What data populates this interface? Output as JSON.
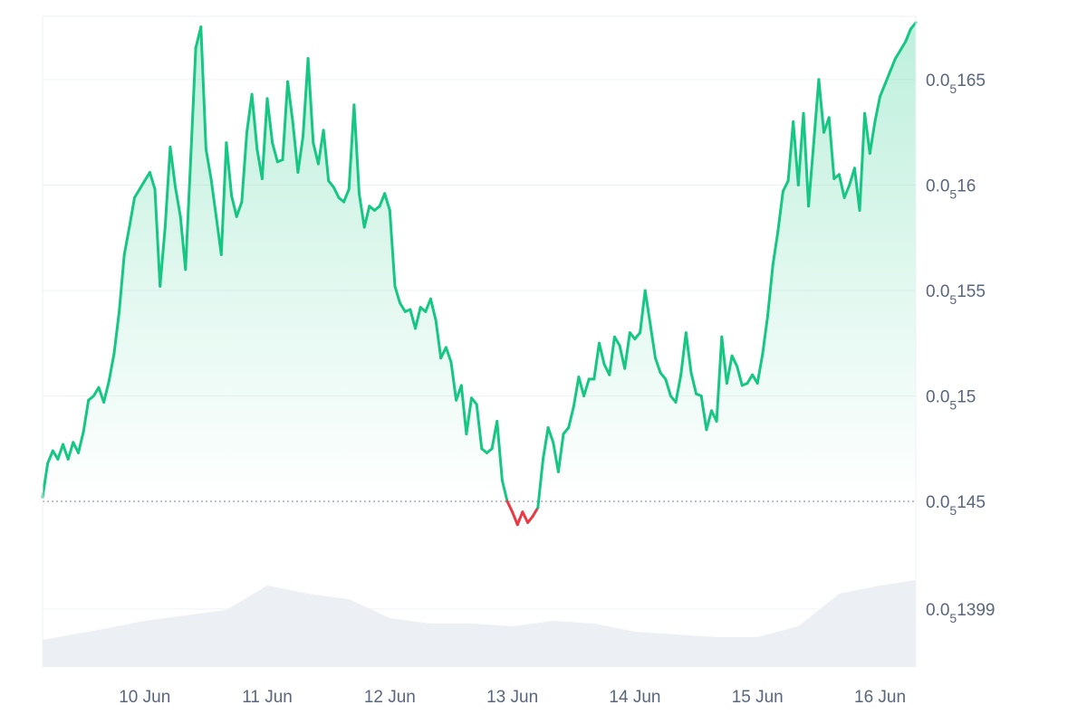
{
  "chart_data": {
    "type": "area",
    "title": "",
    "xlabel": "",
    "ylabel": "",
    "baseline": 1.45e-06,
    "ylim": [
      1.3715e-06,
      1.68e-06
    ],
    "grid": true,
    "legend": "none",
    "y_ticks": [
      {
        "value": 1.65e-06,
        "prefix": "0.0",
        "sub": "5",
        "suffix": "165"
      },
      {
        "value": 1.6e-06,
        "prefix": "0.0",
        "sub": "5",
        "suffix": "16"
      },
      {
        "value": 1.55e-06,
        "prefix": "0.0",
        "sub": "5",
        "suffix": "155"
      },
      {
        "value": 1.5e-06,
        "prefix": "0.0",
        "sub": "5",
        "suffix": "15"
      },
      {
        "value": 1.45e-06,
        "prefix": "0.0",
        "sub": "5",
        "suffix": "145"
      },
      {
        "value": 1.399e-06,
        "prefix": "0.0",
        "sub": "5",
        "suffix": "1399"
      }
    ],
    "x_range": [
      "2024-06-09T04:00",
      "2024-06-16T07:00"
    ],
    "x_ticks": [
      {
        "label": "10 Jun",
        "date": "2024-06-10T00:00"
      },
      {
        "label": "11 Jun",
        "date": "2024-06-11T00:00"
      },
      {
        "label": "12 Jun",
        "date": "2024-06-12T00:00"
      },
      {
        "label": "13 Jun",
        "date": "2024-06-13T00:00"
      },
      {
        "label": "14 Jun",
        "date": "2024-06-14T00:00"
      },
      {
        "label": "15 Jun",
        "date": "2024-06-15T00:00"
      },
      {
        "label": "16 Jun",
        "date": "2024-06-16T00:00"
      }
    ],
    "series": [
      {
        "values": [
          [
            "2024-06-09T04:00",
            1.452e-06
          ],
          [
            "2024-06-09T05:00",
            1.468e-06
          ],
          [
            "2024-06-09T06:00",
            1.474e-06
          ],
          [
            "2024-06-09T07:00",
            1.47e-06
          ],
          [
            "2024-06-09T08:00",
            1.477e-06
          ],
          [
            "2024-06-09T09:00",
            1.47e-06
          ],
          [
            "2024-06-09T10:00",
            1.478e-06
          ],
          [
            "2024-06-09T11:00",
            1.473e-06
          ],
          [
            "2024-06-09T12:00",
            1.483e-06
          ],
          [
            "2024-06-09T13:00",
            1.498e-06
          ],
          [
            "2024-06-09T14:00",
            1.5e-06
          ],
          [
            "2024-06-09T15:00",
            1.504e-06
          ],
          [
            "2024-06-09T16:00",
            1.497e-06
          ],
          [
            "2024-06-09T17:00",
            1.507e-06
          ],
          [
            "2024-06-09T18:00",
            1.52e-06
          ],
          [
            "2024-06-09T19:00",
            1.54e-06
          ],
          [
            "2024-06-09T20:00",
            1.567e-06
          ],
          [
            "2024-06-09T21:00",
            1.58e-06
          ],
          [
            "2024-06-09T22:00",
            1.594e-06
          ],
          [
            "2024-06-09T23:00",
            1.598e-06
          ],
          [
            "2024-06-10T00:00",
            1.602e-06
          ],
          [
            "2024-06-10T01:00",
            1.606e-06
          ],
          [
            "2024-06-10T02:00",
            1.598e-06
          ],
          [
            "2024-06-10T03:00",
            1.552e-06
          ],
          [
            "2024-06-10T04:00",
            1.58e-06
          ],
          [
            "2024-06-10T05:00",
            1.618e-06
          ],
          [
            "2024-06-10T06:00",
            1.599e-06
          ],
          [
            "2024-06-10T07:00",
            1.585e-06
          ],
          [
            "2024-06-10T08:00",
            1.56e-06
          ],
          [
            "2024-06-10T09:00",
            1.612e-06
          ],
          [
            "2024-06-10T10:00",
            1.665e-06
          ],
          [
            "2024-06-10T11:00",
            1.675e-06
          ],
          [
            "2024-06-10T12:00",
            1.617e-06
          ],
          [
            "2024-06-10T13:00",
            1.603e-06
          ],
          [
            "2024-06-10T14:00",
            1.585e-06
          ],
          [
            "2024-06-10T15:00",
            1.567e-06
          ],
          [
            "2024-06-10T16:00",
            1.62e-06
          ],
          [
            "2024-06-10T17:00",
            1.595e-06
          ],
          [
            "2024-06-10T18:00",
            1.585e-06
          ],
          [
            "2024-06-10T19:00",
            1.592e-06
          ],
          [
            "2024-06-10T20:00",
            1.625e-06
          ],
          [
            "2024-06-10T21:00",
            1.643e-06
          ],
          [
            "2024-06-10T22:00",
            1.617e-06
          ],
          [
            "2024-06-10T23:00",
            1.603e-06
          ],
          [
            "2024-06-11T00:00",
            1.641e-06
          ],
          [
            "2024-06-11T01:00",
            1.62e-06
          ],
          [
            "2024-06-11T02:00",
            1.611e-06
          ],
          [
            "2024-06-11T03:00",
            1.612e-06
          ],
          [
            "2024-06-11T04:00",
            1.649e-06
          ],
          [
            "2024-06-11T05:00",
            1.63e-06
          ],
          [
            "2024-06-11T06:00",
            1.606e-06
          ],
          [
            "2024-06-11T07:00",
            1.623e-06
          ],
          [
            "2024-06-11T08:00",
            1.66e-06
          ],
          [
            "2024-06-11T09:00",
            1.62e-06
          ],
          [
            "2024-06-11T10:00",
            1.61e-06
          ],
          [
            "2024-06-11T11:00",
            1.626e-06
          ],
          [
            "2024-06-11T12:00",
            1.602e-06
          ],
          [
            "2024-06-11T13:00",
            1.599e-06
          ],
          [
            "2024-06-11T14:00",
            1.594e-06
          ],
          [
            "2024-06-11T15:00",
            1.592e-06
          ],
          [
            "2024-06-11T16:00",
            1.598e-06
          ],
          [
            "2024-06-11T17:00",
            1.638e-06
          ],
          [
            "2024-06-11T18:00",
            1.596e-06
          ],
          [
            "2024-06-11T19:00",
            1.58e-06
          ],
          [
            "2024-06-11T20:00",
            1.59e-06
          ],
          [
            "2024-06-11T21:00",
            1.588e-06
          ],
          [
            "2024-06-11T22:00",
            1.59e-06
          ],
          [
            "2024-06-11T23:00",
            1.596e-06
          ],
          [
            "2024-06-12T00:00",
            1.588e-06
          ],
          [
            "2024-06-12T01:00",
            1.552e-06
          ],
          [
            "2024-06-12T02:00",
            1.544e-06
          ],
          [
            "2024-06-12T03:00",
            1.54e-06
          ],
          [
            "2024-06-12T04:00",
            1.541e-06
          ],
          [
            "2024-06-12T05:00",
            1.532e-06
          ],
          [
            "2024-06-12T06:00",
            1.542e-06
          ],
          [
            "2024-06-12T07:00",
            1.54e-06
          ],
          [
            "2024-06-12T08:00",
            1.546e-06
          ],
          [
            "2024-06-12T09:00",
            1.536e-06
          ],
          [
            "2024-06-12T10:00",
            1.518e-06
          ],
          [
            "2024-06-12T11:00",
            1.523e-06
          ],
          [
            "2024-06-12T12:00",
            1.516e-06
          ],
          [
            "2024-06-12T13:00",
            1.498e-06
          ],
          [
            "2024-06-12T14:00",
            1.505e-06
          ],
          [
            "2024-06-12T15:00",
            1.482e-06
          ],
          [
            "2024-06-12T16:00",
            1.499e-06
          ],
          [
            "2024-06-12T17:00",
            1.496e-06
          ],
          [
            "2024-06-12T18:00",
            1.475e-06
          ],
          [
            "2024-06-12T19:00",
            1.473e-06
          ],
          [
            "2024-06-12T20:00",
            1.475e-06
          ],
          [
            "2024-06-12T21:00",
            1.488e-06
          ],
          [
            "2024-06-12T22:00",
            1.46e-06
          ],
          [
            "2024-06-12T23:00",
            1.45e-06
          ],
          [
            "2024-06-13T00:00",
            1.445e-06
          ],
          [
            "2024-06-13T01:00",
            1.439e-06
          ],
          [
            "2024-06-13T02:00",
            1.445e-06
          ],
          [
            "2024-06-13T03:00",
            1.44e-06
          ],
          [
            "2024-06-13T04:00",
            1.443e-06
          ],
          [
            "2024-06-13T05:00",
            1.447e-06
          ],
          [
            "2024-06-13T06:00",
            1.47e-06
          ],
          [
            "2024-06-13T07:00",
            1.485e-06
          ],
          [
            "2024-06-13T08:00",
            1.478e-06
          ],
          [
            "2024-06-13T09:00",
            1.464e-06
          ],
          [
            "2024-06-13T10:00",
            1.482e-06
          ],
          [
            "2024-06-13T11:00",
            1.485e-06
          ],
          [
            "2024-06-13T12:00",
            1.495e-06
          ],
          [
            "2024-06-13T13:00",
            1.509e-06
          ],
          [
            "2024-06-13T14:00",
            1.5e-06
          ],
          [
            "2024-06-13T15:00",
            1.508e-06
          ],
          [
            "2024-06-13T16:00",
            1.508e-06
          ],
          [
            "2024-06-13T17:00",
            1.525e-06
          ],
          [
            "2024-06-13T18:00",
            1.515e-06
          ],
          [
            "2024-06-13T19:00",
            1.51e-06
          ],
          [
            "2024-06-13T20:00",
            1.528e-06
          ],
          [
            "2024-06-13T21:00",
            1.524e-06
          ],
          [
            "2024-06-13T22:00",
            1.513e-06
          ],
          [
            "2024-06-13T23:00",
            1.53e-06
          ],
          [
            "2024-06-14T00:00",
            1.527e-06
          ],
          [
            "2024-06-14T01:00",
            1.53e-06
          ],
          [
            "2024-06-14T02:00",
            1.55e-06
          ],
          [
            "2024-06-14T03:00",
            1.534e-06
          ],
          [
            "2024-06-14T04:00",
            1.518e-06
          ],
          [
            "2024-06-14T05:00",
            1.511e-06
          ],
          [
            "2024-06-14T06:00",
            1.508e-06
          ],
          [
            "2024-06-14T07:00",
            1.5e-06
          ],
          [
            "2024-06-14T08:00",
            1.497e-06
          ],
          [
            "2024-06-14T09:00",
            1.51e-06
          ],
          [
            "2024-06-14T10:00",
            1.53e-06
          ],
          [
            "2024-06-14T11:00",
            1.511e-06
          ],
          [
            "2024-06-14T12:00",
            1.501e-06
          ],
          [
            "2024-06-14T13:00",
            1.5e-06
          ],
          [
            "2024-06-14T14:00",
            1.484e-06
          ],
          [
            "2024-06-14T15:00",
            1.493e-06
          ],
          [
            "2024-06-14T16:00",
            1.488e-06
          ],
          [
            "2024-06-14T17:00",
            1.528e-06
          ],
          [
            "2024-06-14T18:00",
            1.506e-06
          ],
          [
            "2024-06-14T19:00",
            1.519e-06
          ],
          [
            "2024-06-14T20:00",
            1.514e-06
          ],
          [
            "2024-06-14T21:00",
            1.505e-06
          ],
          [
            "2024-06-14T22:00",
            1.506e-06
          ],
          [
            "2024-06-14T23:00",
            1.51e-06
          ],
          [
            "2024-06-15T00:00",
            1.506e-06
          ],
          [
            "2024-06-15T01:00",
            1.52e-06
          ],
          [
            "2024-06-15T02:00",
            1.538e-06
          ],
          [
            "2024-06-15T03:00",
            1.562e-06
          ],
          [
            "2024-06-15T04:00",
            1.578e-06
          ],
          [
            "2024-06-15T05:00",
            1.597e-06
          ],
          [
            "2024-06-15T06:00",
            1.602e-06
          ],
          [
            "2024-06-15T07:00",
            1.63e-06
          ],
          [
            "2024-06-15T08:00",
            1.6e-06
          ],
          [
            "2024-06-15T09:00",
            1.634e-06
          ],
          [
            "2024-06-15T10:00",
            1.59e-06
          ],
          [
            "2024-06-15T11:00",
            1.62e-06
          ],
          [
            "2024-06-15T12:00",
            1.65e-06
          ],
          [
            "2024-06-15T13:00",
            1.625e-06
          ],
          [
            "2024-06-15T14:00",
            1.632e-06
          ],
          [
            "2024-06-15T15:00",
            1.603e-06
          ],
          [
            "2024-06-15T16:00",
            1.605e-06
          ],
          [
            "2024-06-15T17:00",
            1.594e-06
          ],
          [
            "2024-06-15T18:00",
            1.6e-06
          ],
          [
            "2024-06-15T19:00",
            1.608e-06
          ],
          [
            "2024-06-15T20:00",
            1.588e-06
          ],
          [
            "2024-06-15T21:00",
            1.634e-06
          ],
          [
            "2024-06-15T22:00",
            1.615e-06
          ],
          [
            "2024-06-15T23:00",
            1.63e-06
          ],
          [
            "2024-06-16T00:00",
            1.642e-06
          ],
          [
            "2024-06-16T01:00",
            1.648e-06
          ],
          [
            "2024-06-16T02:00",
            1.654e-06
          ],
          [
            "2024-06-16T03:00",
            1.66e-06
          ],
          [
            "2024-06-16T04:00",
            1.664e-06
          ],
          [
            "2024-06-16T05:00",
            1.668e-06
          ],
          [
            "2024-06-16T06:00",
            1.674e-06
          ],
          [
            "2024-06-16T07:00",
            1.677e-06
          ]
        ]
      },
      {
        "role": "volume",
        "values": [
          [
            "2024-06-09T04:00",
            1e-07
          ],
          [
            "2024-06-09T16:00",
            1.4e-07
          ],
          [
            "2024-06-10T00:00",
            1.7e-07
          ],
          [
            "2024-06-10T08:00",
            1.9e-07
          ],
          [
            "2024-06-10T16:00",
            2.1e-07
          ],
          [
            "2024-06-11T00:00",
            3e-07
          ],
          [
            "2024-06-11T08:00",
            2.7e-07
          ],
          [
            "2024-06-11T16:00",
            2.5e-07
          ],
          [
            "2024-06-12T00:00",
            1.8e-07
          ],
          [
            "2024-06-12T08:00",
            1.6e-07
          ],
          [
            "2024-06-12T16:00",
            1.6e-07
          ],
          [
            "2024-06-13T00:00",
            1.5e-07
          ],
          [
            "2024-06-13T08:00",
            1.7e-07
          ],
          [
            "2024-06-13T16:00",
            1.6e-07
          ],
          [
            "2024-06-14T00:00",
            1.3e-07
          ],
          [
            "2024-06-14T08:00",
            1.2e-07
          ],
          [
            "2024-06-14T16:00",
            1.1e-07
          ],
          [
            "2024-06-15T00:00",
            1.1e-07
          ],
          [
            "2024-06-15T08:00",
            1.5e-07
          ],
          [
            "2024-06-15T16:00",
            2.7e-07
          ],
          [
            "2024-06-16T00:00",
            3e-07
          ],
          [
            "2024-06-16T07:00",
            3.2e-07
          ]
        ]
      }
    ]
  }
}
